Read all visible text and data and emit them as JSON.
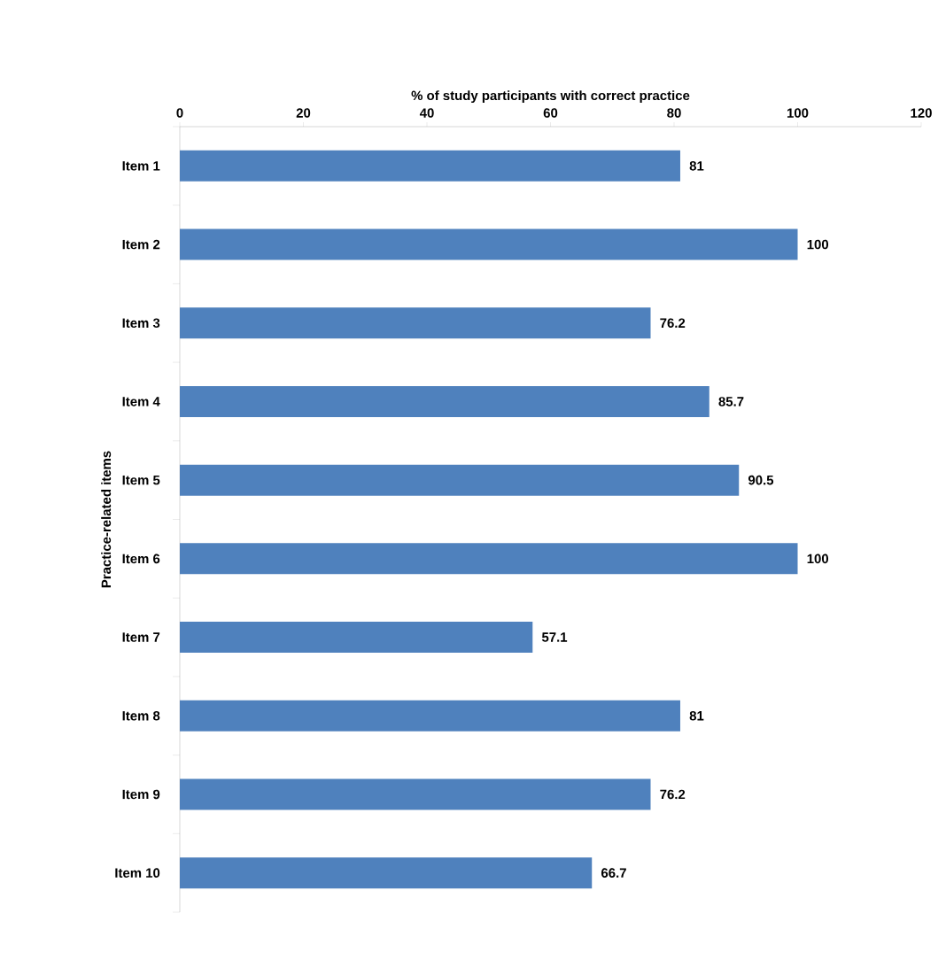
{
  "chart_data": {
    "type": "bar",
    "orientation": "horizontal",
    "xlabel": "% of study participants with correct practice",
    "ylabel": "Practice-related items",
    "categories": [
      "Item 1",
      "Item 2",
      "Item 3",
      "Item 4",
      "Item 5",
      "Item 6",
      "Item 7",
      "Item 8",
      "Item 9",
      "Item 10"
    ],
    "values": [
      81,
      100,
      76.2,
      85.7,
      90.5,
      100,
      57.1,
      81,
      76.2,
      66.7
    ],
    "color": "#4f81bd",
    "xlim": [
      0,
      120
    ],
    "xticks": [
      0,
      20,
      40,
      60,
      80,
      100,
      120
    ],
    "data_labels": true
  }
}
